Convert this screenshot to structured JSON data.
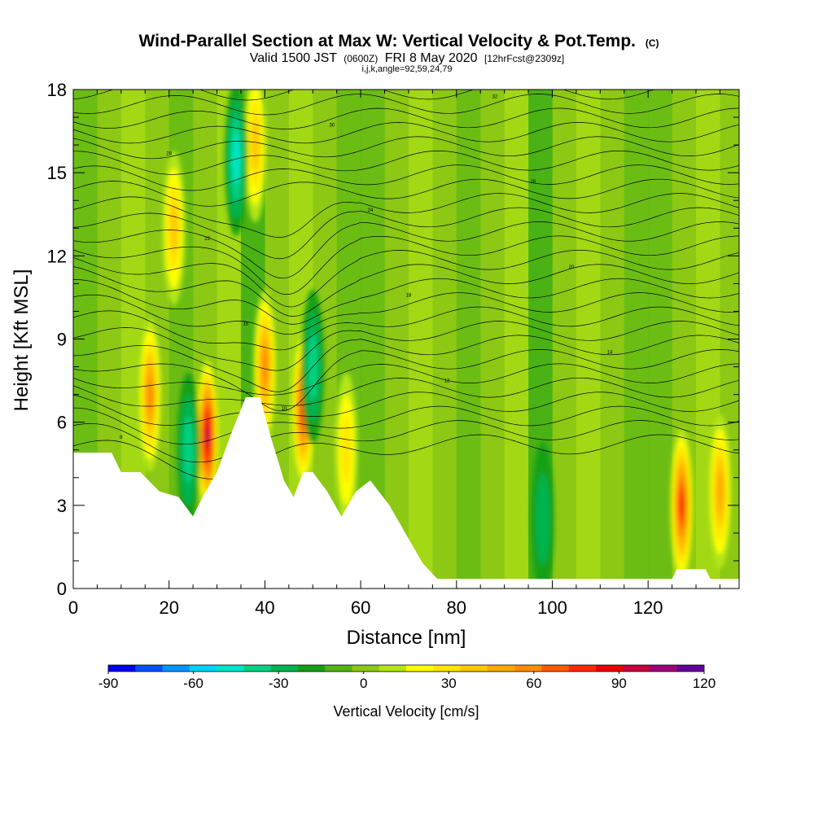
{
  "chart_data": {
    "type": "heatmap",
    "title": "Wind-Parallel Section at Max W: Vertical Velocity & Pot.Temp.",
    "title_suffix": "(C)",
    "subtitle": {
      "prefix": "Valid 1500 JST",
      "utc": "(0600Z)",
      "date": "FRI 8 May 2020",
      "fcst": "[12hrFcst@2309z]"
    },
    "info_line": "i,j,k,angle=92,59,24,79",
    "xlabel": "Distance [nm]",
    "ylabel": "Height [Kft MSL]",
    "xlim": [
      0,
      139
    ],
    "ylim": [
      0,
      18
    ],
    "x_ticks": [
      "0",
      "20",
      "40",
      "60",
      "80",
      "100",
      "120"
    ],
    "y_ticks": [
      "0",
      "3",
      "6",
      "9",
      "12",
      "15",
      "18"
    ],
    "colorbar": {
      "title": "Vertical Velocity [cm/s]",
      "tick_labels": [
        "-90",
        "-60",
        "-30",
        "0",
        "30",
        "60",
        "90",
        "120"
      ],
      "range": [
        -90,
        120
      ],
      "step": 10,
      "colors": [
        "#0000ee",
        "#0050ff",
        "#0096ff",
        "#00d2ff",
        "#00e6c8",
        "#00d282",
        "#00b450",
        "#14a014",
        "#50b414",
        "#8cc814",
        "#b4e614",
        "#ffff00",
        "#ffe600",
        "#ffc800",
        "#ffaa00",
        "#ff8c00",
        "#ff5a00",
        "#ff2800",
        "#ee0000",
        "#c8003c",
        "#a00078",
        "#6400a0"
      ]
    },
    "terrain_kft": [
      [
        0,
        4.9
      ],
      [
        8,
        4.9
      ],
      [
        10,
        4.2
      ],
      [
        14,
        4.2
      ],
      [
        18,
        3.5
      ],
      [
        22,
        3.3
      ],
      [
        25,
        2.6
      ],
      [
        27,
        3.3
      ],
      [
        30,
        4.2
      ],
      [
        33,
        5.6
      ],
      [
        36,
        6.9
      ],
      [
        39,
        6.9
      ],
      [
        41,
        5.6
      ],
      [
        44,
        3.9
      ],
      [
        46,
        3.3
      ],
      [
        48,
        4.2
      ],
      [
        50,
        4.2
      ],
      [
        53,
        3.5
      ],
      [
        56,
        2.6
      ],
      [
        59,
        3.5
      ],
      [
        62,
        3.9
      ],
      [
        66,
        3.0
      ],
      [
        70,
        1.8
      ],
      [
        73,
        0.9
      ],
      [
        76,
        0.35
      ],
      [
        95,
        0.35
      ],
      [
        125,
        0.35
      ],
      [
        126,
        0.7
      ],
      [
        132,
        0.7
      ],
      [
        133,
        0.35
      ],
      [
        139,
        0.35
      ]
    ],
    "updrafts": [
      {
        "x": 16,
        "z": 7.0,
        "w": 70
      },
      {
        "x": 28,
        "z": 5.5,
        "w": 110
      },
      {
        "x": 40,
        "z": 8.0,
        "w": 70
      },
      {
        "x": 48,
        "z": 6.5,
        "w": 85
      },
      {
        "x": 57,
        "z": 5.0,
        "w": 40
      },
      {
        "x": 21,
        "z": 13.0,
        "w": 45
      },
      {
        "x": 38,
        "z": 16.0,
        "w": 45
      },
      {
        "x": 127,
        "z": 3.0,
        "w": 85
      },
      {
        "x": 135,
        "z": 3.5,
        "w": 60
      }
    ],
    "downdrafts": [
      {
        "x": 24,
        "z": 5.0,
        "w": -40
      },
      {
        "x": 34,
        "z": 15.5,
        "w": -50
      },
      {
        "x": 50,
        "z": 8.0,
        "w": -40
      },
      {
        "x": 98,
        "z": 2.5,
        "w": -25
      }
    ],
    "isentrope_labels": [
      "42",
      "40",
      "38",
      "36",
      "34",
      "32",
      "30",
      "28",
      "26",
      "24",
      "22",
      "20",
      "18",
      "16",
      "14",
      "12",
      "10",
      "8"
    ]
  }
}
